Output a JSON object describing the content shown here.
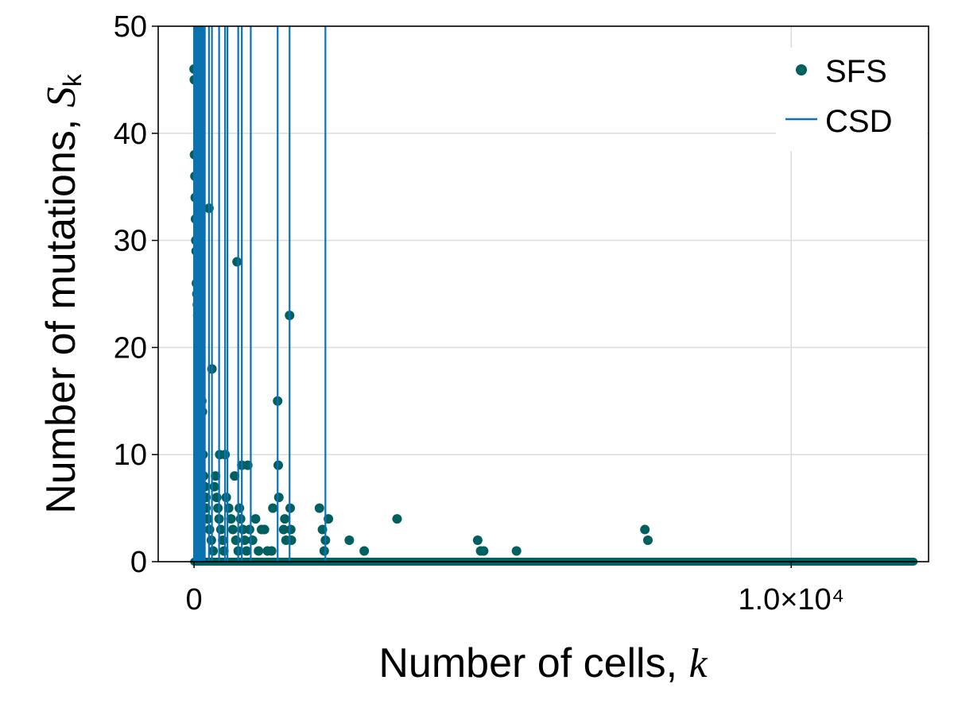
{
  "chart_data": {
    "type": "scatter",
    "title": "",
    "xlabel": "Number of cells, ",
    "xlabel_symbol": "k",
    "ylabel": "Number of mutations, ",
    "ylabel_symbol": "S",
    "ylabel_subscript": "k",
    "xlim": [
      -600,
      12300
    ],
    "ylim": [
      0,
      50
    ],
    "grid": true,
    "legend_position": "top-right",
    "x_ticks": [
      {
        "value": 0,
        "label": "0"
      },
      {
        "value": 10000,
        "label": "1.0×10⁴"
      }
    ],
    "y_ticks": [
      {
        "value": 0,
        "label": "0"
      },
      {
        "value": 10,
        "label": "10"
      },
      {
        "value": 20,
        "label": "20"
      },
      {
        "value": 30,
        "label": "30"
      },
      {
        "value": 40,
        "label": "40"
      },
      {
        "value": 50,
        "label": "50"
      }
    ],
    "series": [
      {
        "name": "SFS",
        "kind": "scatter",
        "color": "#006060",
        "points": [
          [
            1,
            46
          ],
          [
            5,
            45
          ],
          [
            8,
            38
          ],
          [
            15,
            36
          ],
          [
            20,
            34
          ],
          [
            25,
            32
          ],
          [
            30,
            30
          ],
          [
            35,
            29
          ],
          [
            40,
            26
          ],
          [
            60,
            26
          ],
          [
            48,
            25
          ],
          [
            55,
            24
          ],
          [
            62,
            23
          ],
          [
            70,
            22
          ],
          [
            78,
            21
          ],
          [
            85,
            20
          ],
          [
            92,
            17
          ],
          [
            100,
            15
          ],
          [
            130,
            15
          ],
          [
            140,
            14
          ],
          [
            150,
            10
          ],
          [
            160,
            8
          ],
          [
            180,
            7
          ],
          [
            200,
            6
          ],
          [
            250,
            33
          ],
          [
            300,
            18
          ],
          [
            430,
            10
          ],
          [
            520,
            10
          ],
          [
            720,
            28
          ],
          [
            800,
            9
          ],
          [
            900,
            9
          ],
          [
            200,
            5
          ],
          [
            230,
            4
          ],
          [
            260,
            3
          ],
          [
            290,
            2
          ],
          [
            320,
            1
          ],
          [
            340,
            7
          ],
          [
            360,
            8
          ],
          [
            380,
            6
          ],
          [
            400,
            5
          ],
          [
            420,
            4
          ],
          [
            450,
            3
          ],
          [
            480,
            2
          ],
          [
            500,
            1
          ],
          [
            540,
            6
          ],
          [
            580,
            5
          ],
          [
            620,
            4
          ],
          [
            650,
            3
          ],
          [
            680,
            8
          ],
          [
            700,
            2
          ],
          [
            740,
            1
          ],
          [
            760,
            5
          ],
          [
            780,
            4
          ],
          [
            820,
            3
          ],
          [
            850,
            2
          ],
          [
            880,
            1
          ],
          [
            930,
            3
          ],
          [
            980,
            2
          ],
          [
            1030,
            4
          ],
          [
            1080,
            1
          ],
          [
            1130,
            3
          ],
          [
            1180,
            3
          ],
          [
            1230,
            1
          ],
          [
            1300,
            1
          ],
          [
            1320,
            5
          ],
          [
            1400,
            15
          ],
          [
            1410,
            9
          ],
          [
            1420,
            6
          ],
          [
            1500,
            3
          ],
          [
            1520,
            4
          ],
          [
            1540,
            2
          ],
          [
            1600,
            23
          ],
          [
            1610,
            5
          ],
          [
            1620,
            3
          ],
          [
            1630,
            2
          ],
          [
            2100,
            5
          ],
          [
            2150,
            3
          ],
          [
            2180,
            1
          ],
          [
            2200,
            2
          ],
          [
            2250,
            4
          ],
          [
            2600,
            2
          ],
          [
            2850,
            1
          ],
          [
            3400,
            4
          ],
          [
            4750,
            2
          ],
          [
            4800,
            1
          ],
          [
            4850,
            1
          ],
          [
            5400,
            1
          ],
          [
            7550,
            3
          ],
          [
            7600,
            2
          ]
        ],
        "baseline": {
          "y": 0,
          "x_from": 0,
          "x_to": 12050
        }
      },
      {
        "name": "CSD",
        "kind": "vlines",
        "color": "#0b72b0",
        "x": [
          0,
          20,
          40,
          60,
          80,
          100,
          120,
          140,
          160,
          180,
          250,
          300,
          420,
          520,
          560,
          740,
          800,
          950,
          1400,
          1600,
          2200
        ]
      }
    ],
    "legend": [
      {
        "label": "SFS",
        "color": "#006060",
        "marker": "dot"
      },
      {
        "label": "CSD",
        "color": "#0b72b0",
        "marker": "line"
      }
    ]
  }
}
